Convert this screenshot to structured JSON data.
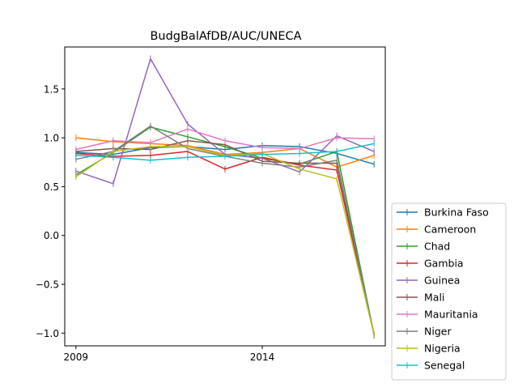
{
  "chart_data": {
    "type": "line",
    "title": "BudgBalAfDB/AUC/UNECA",
    "xlabel": "",
    "ylabel": "",
    "x": [
      2009,
      2010,
      2011,
      2012,
      2013,
      2014,
      2015,
      2016,
      2017
    ],
    "xlim": [
      2008.7,
      2017.3
    ],
    "ylim": [
      -1.13,
      1.93
    ],
    "x_ticks": [
      2009,
      2014
    ],
    "x_tick_labels": [
      "2009",
      "2014"
    ],
    "y_ticks": [
      -1.0,
      -0.5,
      0.0,
      0.5,
      1.0,
      1.5
    ],
    "y_tick_labels": [
      "−1.0",
      "−0.5",
      "0.0",
      "0.5",
      "1.0",
      "1.5"
    ],
    "grid": false,
    "legend_placement": "outside-right-bottom",
    "series": [
      {
        "name": "Burkina Faso",
        "color": "#1f77b4",
        "values": [
          0.85,
          0.83,
          0.9,
          0.91,
          0.88,
          0.92,
          0.91,
          0.84,
          0.73
        ]
      },
      {
        "name": "Cameroon",
        "color": "#ff7f0e",
        "values": [
          1.0,
          0.96,
          0.94,
          0.92,
          0.83,
          0.85,
          0.89,
          0.7,
          0.82
        ]
      },
      {
        "name": "Chad",
        "color": "#2ca02c",
        "values": [
          0.62,
          0.85,
          1.11,
          1.01,
          0.91,
          0.79,
          0.73,
          0.86,
          -1.02
        ]
      },
      {
        "name": "Gambia",
        "color": "#d62728",
        "values": [
          0.84,
          0.81,
          0.82,
          0.86,
          0.68,
          0.8,
          0.72,
          0.67,
          -1.02
        ]
      },
      {
        "name": "Guinea",
        "color": "#9467bd",
        "values": [
          0.66,
          0.53,
          1.81,
          1.14,
          0.83,
          0.79,
          0.65,
          1.02,
          0.86
        ]
      },
      {
        "name": "Mali",
        "color": "#8c564b",
        "values": [
          0.86,
          0.89,
          0.88,
          0.97,
          0.93,
          0.76,
          0.74,
          0.74,
          -1.02
        ]
      },
      {
        "name": "Mauritania",
        "color": "#e377c2",
        "values": [
          0.88,
          0.97,
          0.95,
          1.09,
          0.97,
          0.9,
          0.89,
          1.0,
          0.99
        ]
      },
      {
        "name": "Niger",
        "color": "#7f7f7f",
        "values": [
          0.78,
          0.86,
          1.12,
          0.89,
          0.81,
          0.74,
          0.7,
          0.77,
          -1.02
        ]
      },
      {
        "name": "Nigeria",
        "color": "#bcbd22",
        "values": [
          0.6,
          0.86,
          0.91,
          0.91,
          0.82,
          0.84,
          0.68,
          0.58,
          -1.02
        ]
      },
      {
        "name": "Senegal",
        "color": "#17becf",
        "values": [
          0.82,
          0.8,
          0.77,
          0.8,
          0.81,
          0.83,
          0.84,
          0.86,
          0.94
        ]
      }
    ]
  }
}
